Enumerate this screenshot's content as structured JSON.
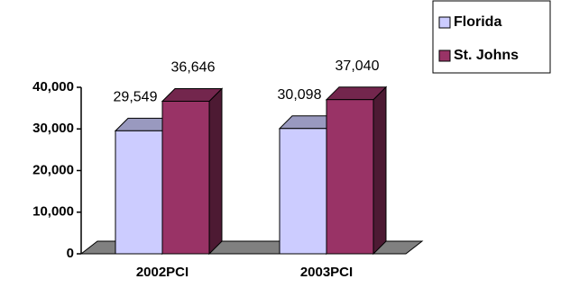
{
  "chart_data": {
    "type": "bar3d",
    "categories": [
      "2002PCI",
      "2003PCI"
    ],
    "series": [
      {
        "name": "Florida",
        "color": "#ccccff",
        "values": [
          29549,
          30098
        ],
        "value_labels": [
          "29,549",
          "30,098"
        ]
      },
      {
        "name": "St. Johns",
        "color": "#993366",
        "values": [
          36646,
          37040
        ],
        "value_labels": [
          "36,646",
          "37,040"
        ]
      }
    ],
    "ylim": [
      0,
      40000
    ],
    "yticks": [
      0,
      {
        "value": 10000,
        "label": "10,000"
      },
      {
        "value": 20000,
        "label": "20,000"
      },
      {
        "value": 30000,
        "label": "30,000"
      },
      {
        "value": 40000,
        "label": "40,000"
      }
    ],
    "legend": "top-right"
  }
}
